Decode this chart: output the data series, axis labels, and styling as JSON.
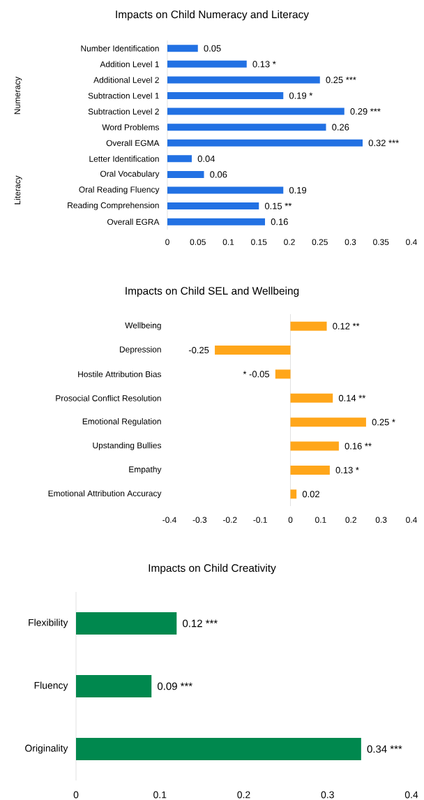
{
  "chart_data": [
    {
      "type": "bar",
      "orientation": "horizontal",
      "title": "Impacts on Child Numeracy and Literacy",
      "categories": [
        "Number Identification",
        "Addition Level 1",
        "Additional Level 2",
        "Subtraction Level 1",
        "Subtraction Level 2",
        "Word Problems",
        "Overall EGMA",
        "Letter Identification",
        "Oral Vocabulary",
        "Oral Reading Fluency",
        "Reading Comprehension",
        "Overall EGRA"
      ],
      "values": [
        0.05,
        0.13,
        0.25,
        0.19,
        0.29,
        0.26,
        0.32,
        0.04,
        0.06,
        0.19,
        0.15,
        0.16
      ],
      "value_labels": [
        "0.05",
        "0.13 *",
        "0.25 ***",
        "0.19 *",
        "0.29 ***",
        "0.26",
        "0.32 ***",
        "0.04",
        "0.06",
        "0.19",
        "0.15 **",
        "0.16"
      ],
      "color": "#2271e3",
      "xlim": [
        0,
        0.4
      ],
      "xticks": [
        0,
        0.05,
        0.1,
        0.15,
        0.2,
        0.25,
        0.3,
        0.35,
        0.4
      ],
      "annotations": [
        "Numeracy",
        "Literacy"
      ]
    },
    {
      "type": "bar",
      "orientation": "horizontal",
      "title": "Impacts on Child SEL and Wellbeing",
      "categories": [
        "Wellbeing",
        "Depression",
        "Hostile Attribution Bias",
        "Prosocial Conflict Resolution",
        "Emotional Regulation",
        "Upstanding Bullies",
        "Empathy",
        "Emotional Attribution Accuracy"
      ],
      "values": [
        0.12,
        -0.25,
        -0.05,
        0.14,
        0.25,
        0.16,
        0.13,
        0.02
      ],
      "value_labels": [
        "0.12 **",
        "-0.25",
        "* -0.05",
        "0.14 **",
        "0.25 *",
        "0.16 **",
        "0.13 *",
        "0.02"
      ],
      "color": "#ffa61a",
      "xlim": [
        -0.4,
        0.4
      ],
      "xticks": [
        -0.4,
        -0.3,
        -0.2,
        -0.1,
        0,
        0.1,
        0.2,
        0.3,
        0.4
      ]
    },
    {
      "type": "bar",
      "orientation": "horizontal",
      "title": "Impacts on Child Creativity",
      "categories": [
        "Flexibility",
        "Fluency",
        "Originality"
      ],
      "values": [
        0.12,
        0.09,
        0.34
      ],
      "value_labels": [
        "0.12 ***",
        "0.09 ***",
        "0.34 ***"
      ],
      "color": "#00884e",
      "xlim": [
        0,
        0.4
      ],
      "xticks": [
        0,
        0.1,
        0.2,
        0.3,
        0.4
      ]
    }
  ]
}
